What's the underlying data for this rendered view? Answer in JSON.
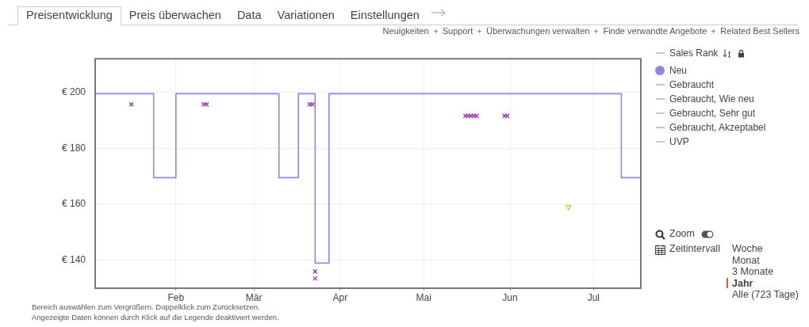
{
  "chart_data": {
    "type": "step",
    "xlim": [
      "--01-03",
      "--07-18"
    ],
    "xticks": [
      {
        "value": "--02-01",
        "label": "Feb"
      },
      {
        "value": "--03-01",
        "label": "Mär"
      },
      {
        "value": "--04-01",
        "label": "Apr"
      },
      {
        "value": "--05-01",
        "label": "Mai"
      },
      {
        "value": "--06-01",
        "label": "Jun"
      },
      {
        "value": "--07-01",
        "label": "Jul"
      }
    ],
    "ylim": [
      130,
      212
    ],
    "yticks": [
      {
        "value": 140,
        "label": "€ 140"
      },
      {
        "value": 160,
        "label": "€ 160"
      },
      {
        "value": 180,
        "label": "€ 180"
      },
      {
        "value": 200,
        "label": "€ 200"
      }
    ],
    "grid": true,
    "legend": "right",
    "line_style": "solid",
    "series": [
      {
        "name": "Sales Rank",
        "type": "line",
        "color": "#c8c8c8"
      },
      {
        "name": "Neu",
        "color": "#8f86e0",
        "marker": "none",
        "x": [
          "--01-03",
          "--01-24",
          "--02-01",
          "--03-10",
          "--03-17",
          "--03-23",
          "--03-28",
          "--07-11",
          "--07-18"
        ],
        "values": [
          199.5,
          169.5,
          199.5,
          169.5,
          199.5,
          139,
          199.5,
          169.5,
          169.5
        ]
      },
      {
        "type": "scatter",
        "color": "#d8c440",
        "marker": "triangle",
        "x": [
          "--06-22"
        ],
        "values": [
          159
        ]
      },
      {
        "name": "Gebraucht",
        "type": "line",
        "color": "#c8c8c8"
      },
      {
        "name": "Gebraucht, Wie neu",
        "type": "line",
        "color": "#c8c8c8"
      },
      {
        "name": "Gebraucht, Sehr gut",
        "type": "line",
        "color": "#c8c8c8"
      },
      {
        "name": "Gebraucht, Akzeptabel",
        "type": "line",
        "color": "#c8c8c8"
      },
      {
        "type": "scatter",
        "color": "#9b30b0",
        "marker": "cross",
        "x": [
          "--01-16",
          "--02-11",
          "--02-12",
          "--03-21",
          "--03-22",
          "--03-23",
          "--03-23",
          "--05-16",
          "--05-17",
          "--05-18",
          "--05-19",
          "--05-20",
          "--05-30",
          "--05-31"
        ],
        "values": [
          195.7,
          195.7,
          195.7,
          195.7,
          195.7,
          136,
          133.5,
          191.6,
          191.6,
          191.6,
          191.6,
          191.6,
          191.6,
          191.6
        ]
      },
      {
        "name": "UVP",
        "type": "line",
        "color": "#c8c8c8"
      }
    ],
    "annotations": [
      "Preisentwicklung",
      "Preis überwachen",
      "Data",
      "Variationen",
      "Einstellungen",
      "Neuigkeiten",
      "Support",
      "Überwachungen verwalten",
      "Finde verwandte Angebote",
      "Related Best Sellers",
      "Zoom",
      "Zeitintervall",
      "Woche",
      "Monat",
      "3 Monate",
      "Jahr",
      "Alle (723 Tage)",
      "Bereich auswählen zum Vergrößern. Doppelklick zum Zurücksetzen.",
      "Angezeigte Daten können durch Klick auf die Legende deaktiviert werden."
    ]
  }
}
